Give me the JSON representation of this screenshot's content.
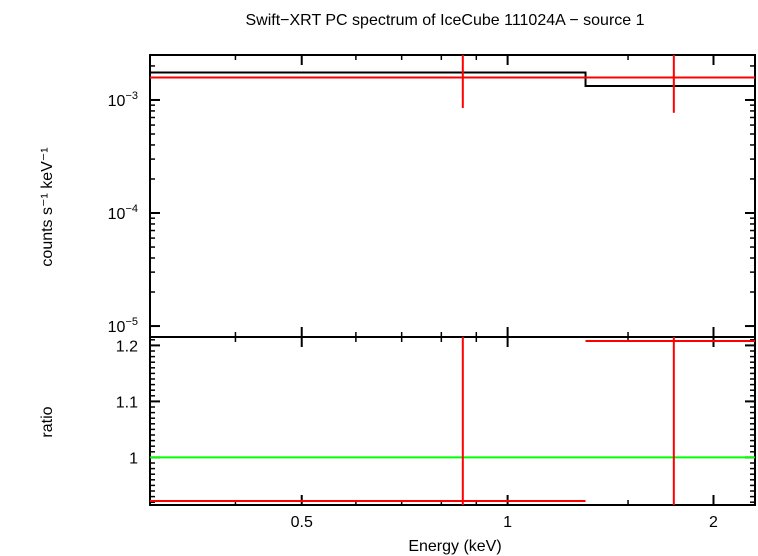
{
  "chart_data": [
    {
      "type": "line",
      "panel": "spectrum",
      "title": "Swift−XRT PC spectrum of IceCube 111024A − source 1",
      "xlabel": "",
      "ylabel": "counts s⁻¹ keV⁻¹",
      "xscale": "log",
      "yscale": "log",
      "xlim": [
        0.3,
        2.3
      ],
      "ylim": [
        8e-06,
        0.0025
      ],
      "yticks": [
        {
          "value": 0.001,
          "base": "10",
          "exp": "−3"
        },
        {
          "value": 0.0001,
          "base": "10",
          "exp": "−4"
        },
        {
          "value": 1e-05,
          "base": "10",
          "exp": "−5"
        }
      ],
      "model": {
        "color": "#000000",
        "steps": [
          {
            "x0": 0.3,
            "x1": 1.3,
            "y": 0.00175
          },
          {
            "x0": 1.3,
            "x1": 2.3,
            "y": 0.00133
          }
        ]
      },
      "data": {
        "color": "#ff0000",
        "points": [
          {
            "x": 0.86,
            "xlo": 0.3,
            "xhi": 1.3,
            "y": 0.00158,
            "ylo": 0.00085,
            "yhi": 0.0025
          },
          {
            "x": 1.75,
            "xlo": 1.3,
            "xhi": 2.3,
            "y": 0.00158,
            "ylo": 0.00077,
            "yhi": 0.0025
          }
        ]
      }
    },
    {
      "type": "line",
      "panel": "ratio",
      "xlabel": "Energy (keV)",
      "ylabel": "ratio",
      "xscale": "log",
      "xlim": [
        0.3,
        2.3
      ],
      "ylim": [
        0.915,
        1.215
      ],
      "xticks": [
        {
          "value": 0.5,
          "label": "0.5"
        },
        {
          "value": 1,
          "label": "1"
        },
        {
          "value": 2,
          "label": "2"
        }
      ],
      "yticks": [
        {
          "value": 1.0,
          "label": "1"
        },
        {
          "value": 1.1,
          "label": "1.1"
        },
        {
          "value": 1.2,
          "label": "1.2"
        }
      ],
      "reference_line": {
        "y": 1.0,
        "color": "#00ff00"
      },
      "data": {
        "color": "#ff0000",
        "points": [
          {
            "x": 0.86,
            "xlo": 0.3,
            "xhi": 1.3,
            "y": 0.9,
            "ylo": 0.5,
            "yhi": 1.5
          },
          {
            "x": 1.75,
            "xlo": 1.3,
            "xhi": 2.3,
            "y": 1.215,
            "ylo": 0.7,
            "yhi": 1.5
          }
        ]
      }
    }
  ]
}
